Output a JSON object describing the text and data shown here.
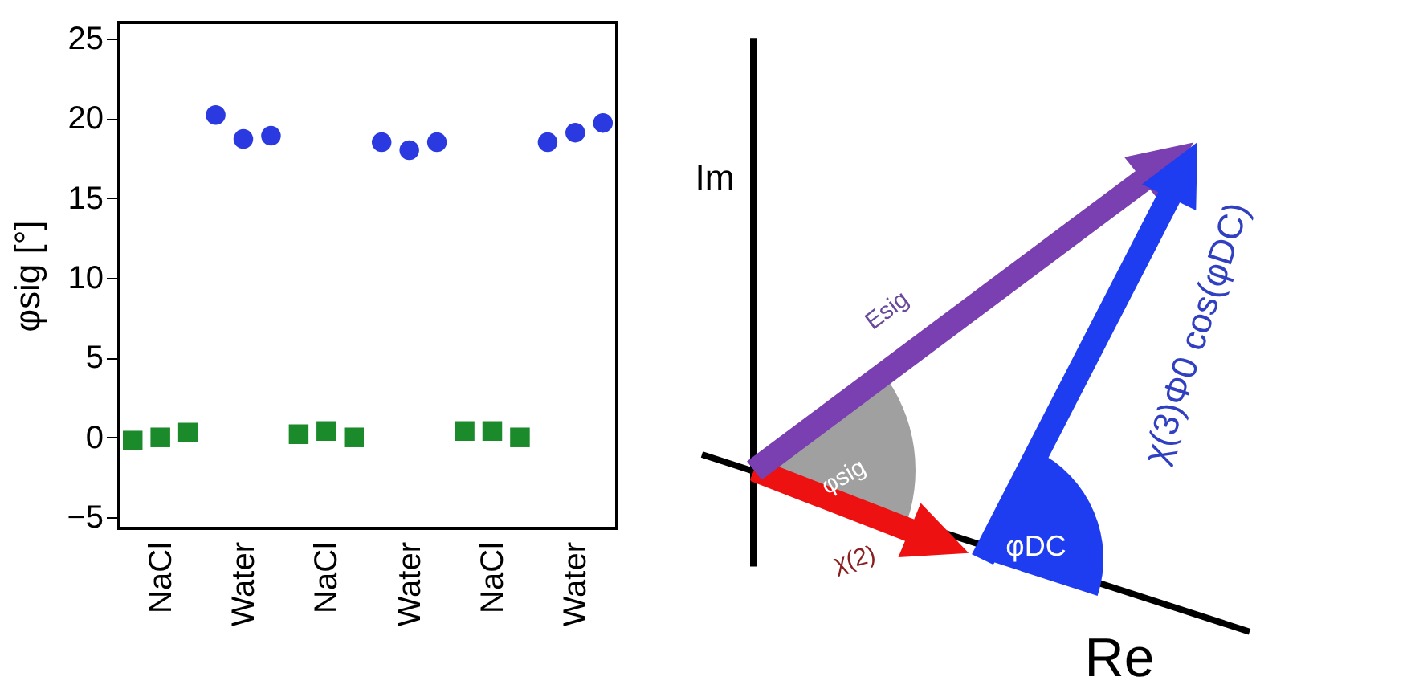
{
  "chart_data": [
    {
      "type": "scatter",
      "ylabel": "φsig [°]",
      "categories": [
        null,
        "NaCl",
        null,
        null,
        "Water",
        null,
        null,
        "NaCl",
        null,
        null,
        "Water",
        null,
        null,
        "NaCl",
        null,
        null,
        "Water",
        null
      ],
      "series": [
        {
          "color": "#1a8a2a",
          "marker": "square",
          "values": [
            -0.2,
            0.0,
            0.3,
            null,
            null,
            null,
            0.2,
            0.4,
            0.0,
            null,
            null,
            null,
            0.4,
            0.4,
            0.0,
            null,
            null,
            null
          ]
        },
        {
          "color": "#2a3ae0",
          "marker": "circle",
          "values": [
            null,
            null,
            null,
            20.2,
            18.7,
            18.9,
            null,
            null,
            null,
            18.5,
            18.0,
            18.5,
            null,
            null,
            null,
            18.5,
            19.1,
            19.7
          ]
        }
      ],
      "ylim": [
        -5.7,
        26
      ],
      "yticks": [
        -5,
        0,
        5,
        10,
        15,
        20,
        25
      ],
      "grid": false
    },
    {
      "type": "other",
      "annotations": [
        "Im",
        "Re",
        "Esig",
        "φsig",
        "χ(2)",
        "φDC",
        "χ(3)Φ0 cos(φDC)"
      ]
    }
  ]
}
